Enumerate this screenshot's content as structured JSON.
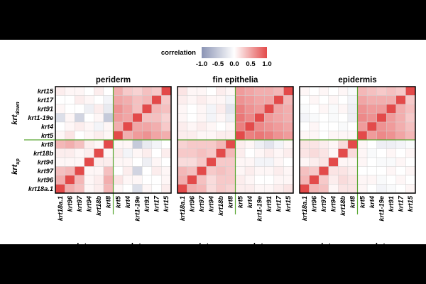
{
  "chart_data": {
    "type": "heatmap",
    "legend_title": "correlation",
    "legend_ticks": [
      "-1.0",
      "-0.5",
      "0.0",
      "0.5",
      "1.0"
    ],
    "color_scale": {
      "min": -1.0,
      "mid": 0.0,
      "max": 1.0,
      "low": "#8b94b5",
      "midcolor": "#ffffff",
      "high": "#e34a4a"
    },
    "divider_color": "#5aa833",
    "row_labels": [
      "krt15",
      "krt17",
      "krt91",
      "krt1-19e",
      "krt4",
      "krt5",
      "krt8",
      "krt18b",
      "krt94",
      "krt97",
      "krt96",
      "krt18a.1"
    ],
    "col_labels": [
      "krt18a.1",
      "krt96",
      "krt97",
      "krt94",
      "krt18b",
      "krt8",
      "krt5",
      "krt4",
      "krt1-19e",
      "krt91",
      "krt17",
      "krt15"
    ],
    "row_group_labels": [
      {
        "main": "krt",
        "sub": "down"
      },
      {
        "main": "krt",
        "sub": "up"
      }
    ],
    "col_group_labels": [
      {
        "main": "krt",
        "sub": "up"
      },
      {
        "main": "krt",
        "sub": "down"
      }
    ],
    "panels": [
      {
        "title": "periderm",
        "values": [
          [
            0.1,
            0.05,
            0.05,
            0.0,
            0.1,
            0.0,
            0.45,
            0.3,
            0.25,
            0.35,
            0.3,
            1.0
          ],
          [
            0.0,
            0.0,
            0.1,
            0.05,
            0.0,
            -0.1,
            0.5,
            0.45,
            0.35,
            0.4,
            1.0,
            0.3
          ],
          [
            0.05,
            0.0,
            0.0,
            -0.15,
            0.1,
            -0.2,
            0.6,
            0.5,
            0.35,
            1.0,
            0.4,
            0.35
          ],
          [
            -0.3,
            0.05,
            -0.4,
            0.0,
            0.05,
            -0.5,
            0.55,
            0.5,
            1.0,
            0.35,
            0.35,
            0.25
          ],
          [
            0.0,
            0.05,
            0.1,
            0.05,
            -0.1,
            0.05,
            0.45,
            1.0,
            0.5,
            0.5,
            0.45,
            0.3
          ],
          [
            0.05,
            0.15,
            0.0,
            0.05,
            0.1,
            0.05,
            1.0,
            0.45,
            0.55,
            0.6,
            0.5,
            0.45
          ],
          [
            0.4,
            0.45,
            0.35,
            0.1,
            0.05,
            1.0,
            0.05,
            0.05,
            -0.5,
            -0.2,
            -0.1,
            0.0
          ],
          [
            0.1,
            0.1,
            0.05,
            0.1,
            1.0,
            0.05,
            0.1,
            -0.1,
            0.05,
            0.1,
            0.0,
            0.1
          ],
          [
            0.05,
            0.05,
            0.05,
            1.0,
            0.1,
            0.1,
            0.05,
            0.05,
            0.0,
            -0.15,
            0.05,
            0.0
          ],
          [
            0.35,
            0.4,
            1.0,
            0.05,
            0.05,
            0.35,
            0.0,
            0.1,
            -0.4,
            0.0,
            0.1,
            0.05
          ],
          [
            0.45,
            1.0,
            0.4,
            0.05,
            0.1,
            0.45,
            0.15,
            0.05,
            0.05,
            0.0,
            0.0,
            0.05
          ],
          [
            1.0,
            0.45,
            0.35,
            0.05,
            0.1,
            0.4,
            0.05,
            0.0,
            -0.3,
            0.05,
            0.0,
            0.1
          ]
        ]
      },
      {
        "title": "fin epithelia",
        "values": [
          [
            0.15,
            0.05,
            0.05,
            0.0,
            0.1,
            0.05,
            0.55,
            0.5,
            0.45,
            0.45,
            0.4,
            1.0
          ],
          [
            0.1,
            0.05,
            0.1,
            0.05,
            0.05,
            -0.1,
            0.6,
            0.55,
            0.5,
            0.5,
            1.0,
            0.4
          ],
          [
            0.05,
            0.0,
            0.05,
            -0.1,
            0.1,
            -0.25,
            0.7,
            0.6,
            0.55,
            1.0,
            0.5,
            0.45
          ],
          [
            0.05,
            0.0,
            0.05,
            -0.1,
            0.05,
            -0.15,
            0.75,
            0.65,
            1.0,
            0.55,
            0.5,
            0.45
          ],
          [
            0.1,
            0.05,
            0.1,
            0.05,
            0.0,
            0.05,
            0.7,
            1.0,
            0.65,
            0.6,
            0.55,
            0.5
          ],
          [
            0.1,
            0.1,
            0.05,
            0.05,
            0.1,
            0.1,
            1.0,
            0.7,
            0.75,
            0.7,
            0.6,
            0.55
          ],
          [
            0.25,
            0.3,
            0.3,
            0.3,
            0.4,
            1.0,
            0.1,
            0.05,
            -0.15,
            -0.25,
            -0.1,
            0.05
          ],
          [
            0.3,
            0.3,
            0.35,
            0.3,
            1.0,
            0.4,
            0.1,
            0.0,
            0.05,
            0.1,
            0.05,
            0.1
          ],
          [
            0.2,
            0.2,
            0.3,
            1.0,
            0.3,
            0.3,
            0.05,
            0.05,
            -0.1,
            -0.1,
            0.05,
            0.0
          ],
          [
            0.4,
            0.35,
            1.0,
            0.3,
            0.35,
            0.3,
            0.05,
            0.1,
            0.05,
            0.05,
            0.1,
            0.05
          ],
          [
            0.45,
            1.0,
            0.35,
            0.2,
            0.3,
            0.3,
            0.1,
            0.05,
            0.0,
            0.0,
            0.05,
            0.05
          ],
          [
            1.0,
            0.45,
            0.4,
            0.2,
            0.3,
            0.25,
            0.1,
            0.1,
            0.05,
            0.05,
            0.1,
            0.15
          ]
        ]
      },
      {
        "title": "epidermis",
        "values": [
          [
            0.05,
            0.0,
            0.05,
            0.0,
            0.05,
            -0.05,
            0.4,
            0.35,
            0.3,
            0.35,
            0.3,
            1.0
          ],
          [
            0.0,
            0.05,
            0.0,
            0.05,
            0.0,
            -0.1,
            0.5,
            0.45,
            0.45,
            0.45,
            1.0,
            0.3
          ],
          [
            -0.05,
            0.0,
            0.05,
            -0.05,
            0.05,
            -0.15,
            0.6,
            0.55,
            0.55,
            1.0,
            0.45,
            0.35
          ],
          [
            -0.1,
            -0.05,
            0.0,
            -0.05,
            0.0,
            -0.15,
            0.65,
            0.6,
            1.0,
            0.55,
            0.45,
            0.3
          ],
          [
            0.0,
            0.05,
            0.0,
            0.0,
            -0.05,
            0.0,
            0.55,
            1.0,
            0.6,
            0.55,
            0.45,
            0.35
          ],
          [
            0.05,
            0.05,
            0.0,
            0.05,
            0.05,
            0.05,
            1.0,
            0.55,
            0.65,
            0.6,
            0.5,
            0.4
          ],
          [
            0.15,
            0.15,
            0.1,
            0.05,
            0.2,
            1.0,
            0.05,
            0.0,
            -0.15,
            -0.15,
            -0.1,
            -0.05
          ],
          [
            0.15,
            0.2,
            0.15,
            0.05,
            1.0,
            0.2,
            0.05,
            -0.05,
            0.0,
            0.05,
            0.0,
            0.05
          ],
          [
            0.05,
            0.1,
            0.15,
            1.0,
            0.05,
            0.05,
            0.05,
            0.0,
            -0.05,
            -0.05,
            0.05,
            0.0
          ],
          [
            0.35,
            0.3,
            1.0,
            0.15,
            0.15,
            0.1,
            0.0,
            0.0,
            0.0,
            0.05,
            0.0,
            0.05
          ],
          [
            0.4,
            1.0,
            0.3,
            0.1,
            0.2,
            0.15,
            0.05,
            0.05,
            -0.05,
            0.0,
            0.05,
            0.0
          ],
          [
            1.0,
            0.4,
            0.35,
            0.05,
            0.15,
            0.15,
            0.05,
            0.0,
            -0.1,
            -0.05,
            0.0,
            0.05
          ]
        ]
      }
    ]
  }
}
